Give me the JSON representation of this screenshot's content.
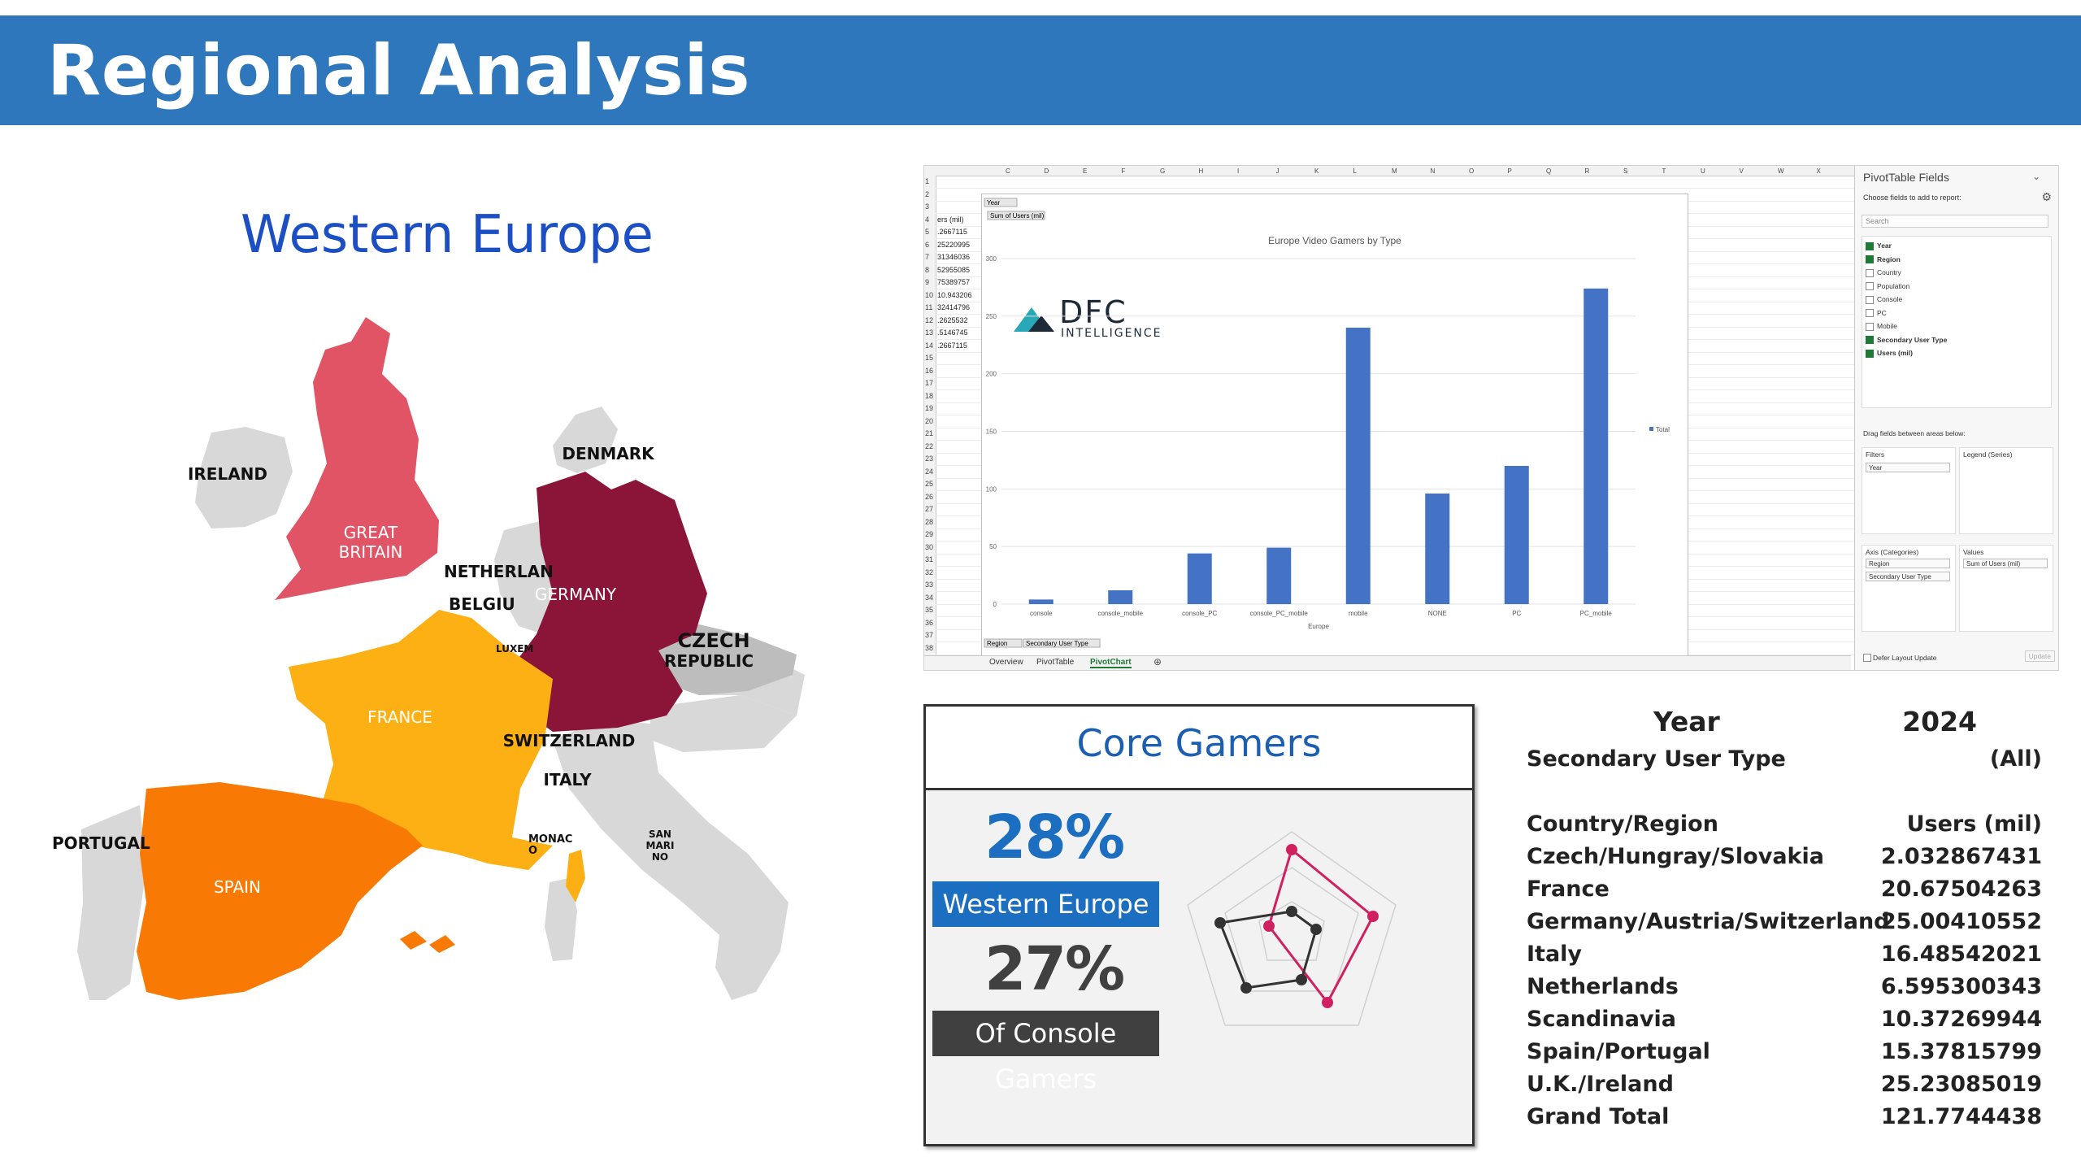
{
  "header": {
    "title": "Regional Analysis"
  },
  "map": {
    "title": "Western Europe",
    "labels": {
      "ireland": "IRELAND",
      "great_britain": [
        "GREAT",
        "BRITAIN"
      ],
      "denmark": "DENMARK",
      "netherlands": "NETHERLAN",
      "belgium": "BELGIU",
      "luxembourg": "LUXEM",
      "germany": "GERMANY",
      "czech": [
        "CZECH",
        "REPUBLIC"
      ],
      "france": "FRANCE",
      "switzerland": "SWITZERLAND",
      "italy": "ITALY",
      "portugal": "PORTUGAL",
      "spain": "SPAIN",
      "monaco": [
        "MONAC",
        "O"
      ],
      "san_marino": [
        "SAN",
        "MARI",
        "NO"
      ]
    },
    "colors": {
      "great_britain": "#e05466",
      "germany": "#8b1538",
      "france": "#fdb013",
      "spain": "#f87a05",
      "other": "#d8d8d8"
    }
  },
  "excel": {
    "row_numbers": [
      "1",
      "2",
      "3",
      "4",
      "5",
      "6",
      "7",
      "8",
      "9",
      "10",
      "11",
      "12",
      "13",
      "14",
      "15",
      "16",
      "17",
      "18",
      "19",
      "20",
      "21",
      "22",
      "23",
      "24",
      "25",
      "26",
      "27",
      "28",
      "29",
      "30",
      "31",
      "32",
      "33",
      "34",
      "35",
      "36",
      "37",
      "38"
    ],
    "column_letters": [
      "C",
      "D",
      "E",
      "F",
      "G",
      "H",
      "I",
      "J",
      "K",
      "L",
      "M",
      "N",
      "O",
      "P",
      "Q",
      "R",
      "S",
      "T",
      "U",
      "V",
      "W",
      "X"
    ],
    "cells": [
      "ers (mil)",
      ".2667115",
      "25220995",
      "31346036",
      "52955085",
      "75389757",
      "10.943206",
      "32414796",
      ".2625532",
      ".5146745",
      ".2667115"
    ],
    "filter_buttons": {
      "year": "Year",
      "sum_of_users": "Sum of Users (mil)",
      "region": "Region",
      "secondary_user_type": "Secondary User Type"
    },
    "sheet_tabs": [
      "Overview",
      "PivotTable",
      "PivotChart"
    ],
    "active_tab": "PivotChart",
    "logo": {
      "brand": "DFC",
      "sub": "INTELLIGENCE"
    },
    "pivot_fields": {
      "title": "PivotTable Fields",
      "subtitle": "Choose fields to add to report:",
      "search_placeholder": "Search",
      "fields": [
        {
          "name": "Year",
          "checked": true
        },
        {
          "name": "Region",
          "checked": true
        },
        {
          "name": "Country",
          "checked": false
        },
        {
          "name": "Population",
          "checked": false
        },
        {
          "name": "Console",
          "checked": false
        },
        {
          "name": "PC",
          "checked": false
        },
        {
          "name": "Mobile",
          "checked": false
        },
        {
          "name": "Secondary User Type",
          "checked": true
        },
        {
          "name": "Users (mil)",
          "checked": true
        }
      ],
      "drag_hint": "Drag fields between areas below:",
      "filters_title": "Filters",
      "filters_item": "Year",
      "legend_title": "Legend (Series)",
      "axis_title": "Axis (Categories)",
      "axis_items": [
        "Region",
        "Secondary User Type"
      ],
      "values_title": "Values",
      "values_item": "Sum of Users (mil)",
      "defer_label": "Defer Layout Update",
      "update_label": "Update"
    }
  },
  "chart_data": {
    "type": "bar",
    "title": "Europe Video Gamers by Type",
    "categories": [
      "console",
      "console_mobile",
      "console_PC",
      "console_PC_mobile",
      "mobile",
      "NONE",
      "PC",
      "PC_mobile"
    ],
    "series": [
      {
        "name": "Total",
        "values": [
          4,
          12,
          44,
          49,
          240,
          96,
          120,
          274
        ]
      }
    ],
    "xlabel": "Europe",
    "ylabel": "",
    "ylim": [
      0,
      300
    ],
    "yticks": [
      0,
      50,
      100,
      150,
      200,
      250,
      300
    ],
    "grid": true,
    "legend": "right",
    "color": "#4472c4"
  },
  "core_gamers": {
    "title": "Core Gamers",
    "stat1_value": "28%",
    "stat1_label": "Western Europe",
    "stat2_value": "27%",
    "stat2_label": "Of Console Gamers",
    "colors": {
      "accent": "#1c6fc0",
      "dark": "#404040",
      "radar_pink": "#d02060",
      "radar_dark": "#333333"
    }
  },
  "pivot_table": {
    "year_label": "Year",
    "year_value": "2024",
    "type_label": "Secondary User Type",
    "type_value": "(All)",
    "col_region": "Country/Region",
    "col_users": "Users (mil)",
    "rows": [
      {
        "region": "Czech/Hungray/Slovakia",
        "users": "2.032867431"
      },
      {
        "region": "France",
        "users": "20.67504263"
      },
      {
        "region": "Germany/Austria/Switzerland",
        "users": "25.00410552"
      },
      {
        "region": "Italy",
        "users": "16.48542021"
      },
      {
        "region": "Netherlands",
        "users": "6.595300343"
      },
      {
        "region": "Scandinavia",
        "users": "10.37269944"
      },
      {
        "region": "Spain/Portugal",
        "users": "15.37815799"
      },
      {
        "region": "U.K./Ireland",
        "users": "25.23085019"
      }
    ],
    "total_label": "Grand Total",
    "total_value": "121.7744438"
  }
}
